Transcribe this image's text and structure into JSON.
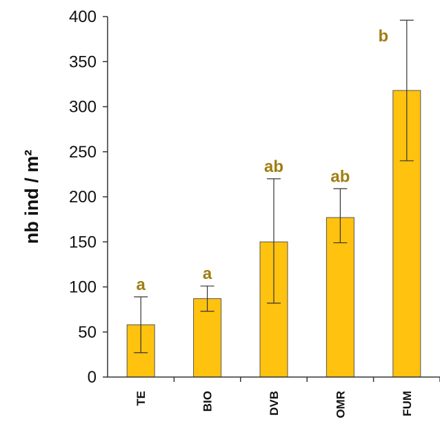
{
  "chart_data": {
    "type": "bar",
    "title": "",
    "xlabel": "",
    "ylabel": "nb ind / m²",
    "ylim": [
      0,
      400
    ],
    "yticks": [
      "0",
      "50",
      "100",
      "150",
      "200",
      "250",
      "300",
      "350",
      "400"
    ],
    "categories": [
      "TE",
      "BIO",
      "DVB",
      "OMR",
      "FUM"
    ],
    "values": [
      58,
      87,
      150,
      177,
      318
    ],
    "error_low": [
      27,
      73,
      82,
      149,
      240
    ],
    "error_high": [
      89,
      101,
      220,
      209,
      396
    ],
    "group_labels": [
      "a",
      "a",
      "ab",
      "ab",
      "b"
    ],
    "grid": false,
    "colors": {
      "bar_fill": "#FFC20E",
      "bar_stroke": "#555555",
      "group_label": "#A07D12",
      "axis": "#333333",
      "error_bar": "#333333"
    }
  }
}
